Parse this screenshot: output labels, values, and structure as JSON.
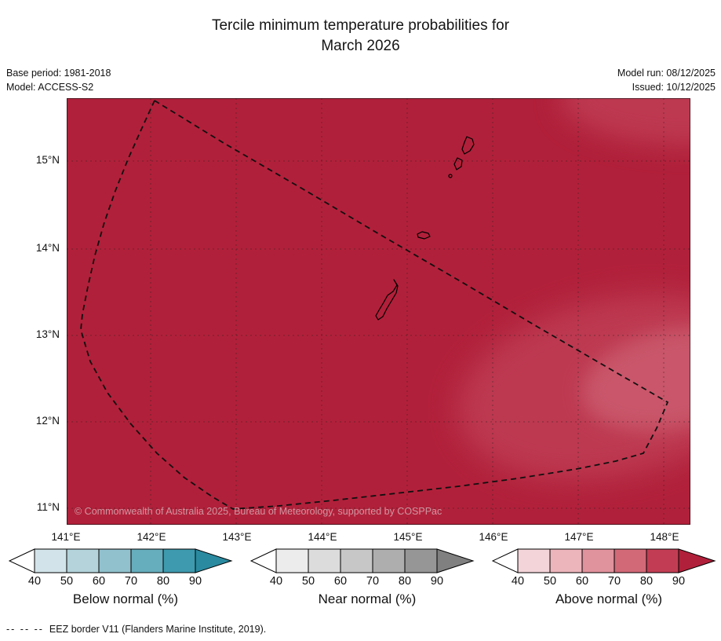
{
  "title": {
    "line1": "Tercile minimum temperature probabilities for",
    "line2": "March 2026"
  },
  "meta": {
    "base_period": "Base period: 1981-2018",
    "model": "Model: ACCESS-S2",
    "model_run": "Model run: 08/12/2025",
    "issued": "Issued: 10/12/2025"
  },
  "map": {
    "copyright": "© Commonwealth of Australia 2025, Bureau of Meteorology, supported by COSPPac",
    "lat_ticks": [
      "15°N",
      "14°N",
      "13°N",
      "12°N",
      "11°N"
    ],
    "lon_ticks": [
      "141°E",
      "142°E",
      "143°E",
      "144°E",
      "145°E",
      "146°E",
      "147°E",
      "148°E"
    ],
    "fill_color": "#b1203a",
    "patch_color_light": "#bd3950",
    "patch_color_lighter": "#c9566a"
  },
  "legends": [
    {
      "label": "Below normal (%)",
      "ticks": [
        "40",
        "50",
        "60",
        "70",
        "80",
        "90"
      ],
      "arrow_left": "#ffffff",
      "cell_colors": [
        "#d2e4e9",
        "#b4d3db",
        "#90c1cd",
        "#66adbd",
        "#3e9aae"
      ],
      "arrow_right": "#2a8aa0"
    },
    {
      "label": "Near normal (%)",
      "ticks": [
        "40",
        "50",
        "60",
        "70",
        "80",
        "90"
      ],
      "arrow_left": "#ffffff",
      "cell_colors": [
        "#ececec",
        "#dcdcdc",
        "#c7c7c7",
        "#aeaeae",
        "#969696"
      ],
      "arrow_right": "#808080"
    },
    {
      "label": "Above normal (%)",
      "ticks": [
        "40",
        "50",
        "60",
        "70",
        "80",
        "90"
      ],
      "arrow_left": "#ffffff",
      "cell_colors": [
        "#f3d4d8",
        "#ecb5bb",
        "#e0929d",
        "#d26977",
        "#c23d53"
      ],
      "arrow_right": "#b1203a"
    }
  ],
  "footnote": {
    "dash_sample": "--  --  --",
    "text": "EEZ border V11 (Flanders Marine Institute, 2019)."
  }
}
